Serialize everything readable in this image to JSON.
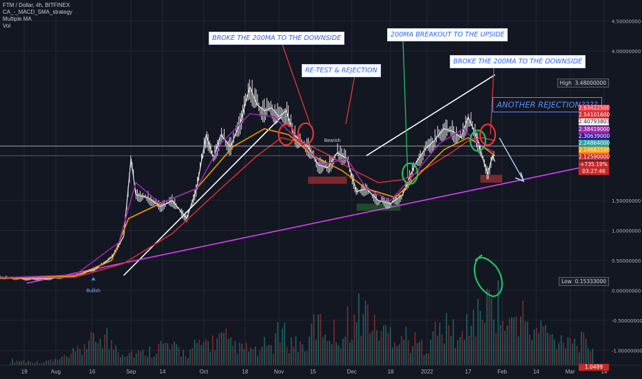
{
  "header": {
    "symbol": "FTM / Dollar, 4h, BITFINEX",
    "study1": "CA_-_MACD_SMA_strategy",
    "study2": "Multiple MA",
    "study3": "Vol"
  },
  "annotations": {
    "broke_1": "BROKE THE 200MA TO THE  DOWNSIDE",
    "retest": "RE-TEST & REJECTION",
    "breakout": "200MA BREAKOUT TO THE UPSIDE",
    "broke_2": "BROKE THE 200MA TO THE  DOWNSIDE",
    "another": "ANOTHER REJECTION????"
  },
  "markers": {
    "bullish": "Bullish",
    "bearish": "Bearish"
  },
  "highlow": {
    "high_label": "High",
    "high_value": "3.48000000",
    "low_label": "Low",
    "low_value": "0.15333000"
  },
  "price_labels": [
    {
      "text": "2.63422500",
      "color": "#f23645"
    },
    {
      "text": "2.54101600",
      "color": "#d32f2f"
    },
    {
      "text": "2.40793803",
      "color": "#ffffff",
      "fg": "#131722"
    },
    {
      "text": "2.38419000",
      "color": "#9c27b0"
    },
    {
      "text": "2.30639000",
      "color": "#311b92"
    },
    {
      "text": "2.24864000",
      "color": "#26a69a"
    },
    {
      "text": "2.24682500",
      "color": "#ff9800"
    },
    {
      "text": "2.12590000",
      "color": "#c62828"
    },
    {
      "text": "+735.19%",
      "color": "#c62828"
    },
    {
      "text": "03:27:46",
      "color": "#c62828"
    }
  ],
  "bottom_label": "1.0489",
  "colors": {
    "bg": "#131722",
    "axis_text": "#b2b5be",
    "candle_up": "#e8e8e8",
    "ma200": "#d32f2f",
    "ma50": "#ff9800",
    "ma20": "#9c27b0",
    "trend_white": "#ffffff",
    "trend_magenta": "#e040fb",
    "green": "#22c55e",
    "red": "#e53935"
  },
  "chart_data": {
    "type": "line",
    "title": "FTM / Dollar, 4h, BITFINEX",
    "xlabel": "",
    "ylabel": "",
    "ylim": [
      -1.25,
      4.85
    ],
    "grid": true,
    "scale": "linear",
    "y_ticks": [
      {
        "value": 4.5,
        "label": "4.50000000"
      },
      {
        "value": 4.0,
        "label": "4.00000000"
      },
      {
        "value": 1.5,
        "label": "1.50000000"
      },
      {
        "value": 1.0,
        "label": "1.00000000"
      },
      {
        "value": 0.5,
        "label": "0.50000000"
      },
      {
        "value": 0.0,
        "label": "0.00000000"
      },
      {
        "value": -0.5,
        "label": "-0.50000000"
      },
      {
        "value": -1.0,
        "label": "-1.00000000"
      }
    ],
    "x_ticks": [
      {
        "day": 19,
        "label": "19"
      },
      {
        "day": 32,
        "label": "Aug"
      },
      {
        "day": 47,
        "label": "16"
      },
      {
        "day": 63,
        "label": "Sep"
      },
      {
        "day": 76,
        "label": "14"
      },
      {
        "day": 93,
        "label": "Oct"
      },
      {
        "day": 110,
        "label": "18"
      },
      {
        "day": 124,
        "label": "Nov"
      },
      {
        "day": 138,
        "label": "15"
      },
      {
        "day": 154,
        "label": "Dec"
      },
      {
        "day": 170,
        "label": "18"
      },
      {
        "day": 185,
        "label": "2022"
      },
      {
        "day": 202,
        "label": "17"
      },
      {
        "day": 216,
        "label": "Feb"
      },
      {
        "day": 230,
        "label": "14"
      },
      {
        "day": 244,
        "label": "Mar"
      },
      {
        "day": 258,
        "label": "14"
      }
    ],
    "x_range": [
      9,
      260
    ],
    "price_series": {
      "name": "FTM price",
      "points": [
        [
          9,
          0.22
        ],
        [
          20,
          0.19
        ],
        [
          30,
          0.2
        ],
        [
          40,
          0.25
        ],
        [
          48,
          0.35
        ],
        [
          55,
          0.55
        ],
        [
          60,
          0.9
        ],
        [
          63,
          2.2
        ],
        [
          65,
          1.6
        ],
        [
          70,
          1.55
        ],
        [
          75,
          1.4
        ],
        [
          80,
          1.5
        ],
        [
          86,
          1.2
        ],
        [
          90,
          1.7
        ],
        [
          94,
          2.6
        ],
        [
          97,
          2.2
        ],
        [
          100,
          2.6
        ],
        [
          104,
          2.4
        ],
        [
          108,
          2.8
        ],
        [
          112,
          3.4
        ],
        [
          115,
          3.1
        ],
        [
          118,
          3.0
        ],
        [
          121,
          3.05
        ],
        [
          124,
          2.9
        ],
        [
          127,
          3.0
        ],
        [
          130,
          2.6
        ],
        [
          133,
          2.5
        ],
        [
          136,
          2.4
        ],
        [
          140,
          2.1
        ],
        [
          144,
          2.05
        ],
        [
          148,
          2.3
        ],
        [
          152,
          2.2
        ],
        [
          156,
          1.65
        ],
        [
          160,
          1.7
        ],
        [
          165,
          1.5
        ],
        [
          170,
          1.45
        ],
        [
          175,
          1.6
        ],
        [
          180,
          2.1
        ],
        [
          184,
          2.35
        ],
        [
          188,
          2.5
        ],
        [
          192,
          2.7
        ],
        [
          196,
          2.65
        ],
        [
          199,
          2.55
        ],
        [
          202,
          2.9
        ],
        [
          204,
          2.7
        ],
        [
          206,
          2.5
        ],
        [
          208,
          2.2
        ],
        [
          210,
          1.95
        ],
        [
          212,
          2.25
        ],
        [
          213,
          2.15
        ]
      ]
    },
    "ma_series": [
      {
        "name": "200MA",
        "color": "#d32f2f",
        "points": [
          [
            9,
            0.2
          ],
          [
            40,
            0.22
          ],
          [
            60,
            0.45
          ],
          [
            80,
            0.95
          ],
          [
            100,
            1.7
          ],
          [
            115,
            2.25
          ],
          [
            125,
            2.55
          ],
          [
            135,
            2.45
          ],
          [
            145,
            2.25
          ],
          [
            155,
            2.0
          ],
          [
            165,
            1.8
          ],
          [
            175,
            1.85
          ],
          [
            185,
            2.05
          ],
          [
            195,
            2.3
          ],
          [
            202,
            2.5
          ],
          [
            208,
            2.55
          ],
          [
            213,
            2.5
          ]
        ]
      },
      {
        "name": "50MA",
        "color": "#ff9800",
        "points": [
          [
            9,
            0.2
          ],
          [
            40,
            0.24
          ],
          [
            55,
            0.5
          ],
          [
            62,
            1.2
          ],
          [
            75,
            1.45
          ],
          [
            90,
            1.7
          ],
          [
            105,
            2.4
          ],
          [
            118,
            2.7
          ],
          [
            128,
            2.6
          ],
          [
            138,
            2.25
          ],
          [
            150,
            2.0
          ],
          [
            160,
            1.7
          ],
          [
            172,
            1.55
          ],
          [
            182,
            1.95
          ],
          [
            192,
            2.35
          ],
          [
            202,
            2.55
          ],
          [
            208,
            2.4
          ],
          [
            213,
            2.25
          ]
        ]
      },
      {
        "name": "20MA",
        "color": "#9c27b0",
        "points": [
          [
            9,
            0.21
          ],
          [
            40,
            0.26
          ],
          [
            58,
            0.8
          ],
          [
            65,
            1.8
          ],
          [
            75,
            1.45
          ],
          [
            90,
            1.7
          ],
          [
            100,
            2.45
          ],
          [
            112,
            2.95
          ],
          [
            122,
            2.9
          ],
          [
            132,
            2.5
          ],
          [
            142,
            2.1
          ],
          [
            152,
            2.2
          ],
          [
            160,
            1.7
          ],
          [
            170,
            1.5
          ],
          [
            180,
            1.95
          ],
          [
            190,
            2.45
          ],
          [
            200,
            2.7
          ],
          [
            206,
            2.45
          ],
          [
            213,
            2.3
          ]
        ]
      }
    ],
    "trendlines": [
      {
        "name": "white support",
        "color": "#ffffff",
        "points": [
          [
            60,
            0.25
          ],
          [
            125,
            2.9
          ]
        ]
      },
      {
        "name": "white rising",
        "color": "#ffffff",
        "points": [
          [
            160,
            2.25
          ],
          [
            213,
            3.6
          ]
        ]
      },
      {
        "name": "magenta support",
        "color": "#e040fb",
        "points": [
          [
            20,
            0.12
          ],
          [
            260,
            2.15
          ]
        ]
      }
    ],
    "zones": [
      {
        "type": "resistance",
        "color": "#e53935",
        "x": [
          136,
          152
        ],
        "y": [
          1.78,
          1.9
        ]
      },
      {
        "type": "support",
        "color": "#2e7d32",
        "x": [
          156,
          174
        ],
        "y": [
          1.33,
          1.45
        ]
      },
      {
        "type": "support",
        "color": "#e53935",
        "x": [
          207,
          216
        ],
        "y": [
          1.8,
          1.93
        ]
      }
    ],
    "volume": [
      0.05,
      0.07,
      0.06,
      0.05,
      0.08,
      0.12,
      0.2,
      0.35,
      0.45,
      0.3,
      0.2,
      0.18,
      0.22,
      0.3,
      0.25,
      0.2,
      0.28,
      0.35,
      0.4,
      0.3,
      0.25,
      0.2,
      0.3,
      0.45,
      0.35,
      0.3,
      0.6,
      0.5,
      0.45,
      0.65,
      0.8,
      0.55,
      0.5,
      0.45,
      0.35,
      0.3,
      0.5,
      0.55,
      0.4,
      0.7,
      0.9,
      0.95,
      0.6,
      0.75,
      0.5,
      0.55,
      0.4,
      0.45,
      0.35,
      0.3,
      0.28
    ]
  }
}
